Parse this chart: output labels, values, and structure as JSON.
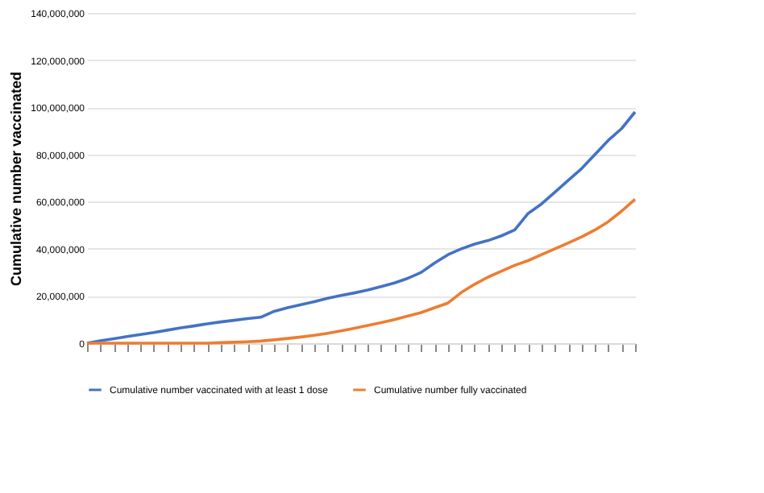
{
  "chart_data": {
    "type": "line",
    "ylabel": "Cumulative number vaccinated",
    "categories": [
      null,
      null,
      null,
      null,
      null,
      null,
      null,
      null,
      null,
      null,
      null,
      null,
      null,
      null,
      null,
      null,
      null,
      null,
      null,
      null,
      null,
      null,
      null,
      null,
      null,
      null,
      null,
      null,
      null,
      null,
      null,
      null,
      null,
      null,
      null,
      null,
      null,
      null,
      null,
      null,
      null,
      null
    ],
    "series": [
      {
        "name": "Cumulative number vaccinated with  at least 1 dose",
        "color": "#4472c4",
        "values": [
          0,
          1000000,
          1900000,
          2800000,
          3700000,
          4500000,
          5500000,
          6500000,
          7300000,
          8200000,
          9000000,
          9700000,
          10400000,
          11000000,
          13500000,
          15000000,
          16300000,
          17600000,
          19000000,
          20200000,
          21300000,
          22500000,
          24000000,
          25500000,
          27500000,
          30000000,
          34000000,
          37500000,
          40000000,
          42000000,
          43500000,
          45500000,
          48000000,
          55000000,
          59000000,
          64000000,
          69000000,
          74000000,
          80000000,
          86000000,
          91000000,
          98000000
        ]
      },
      {
        "name": "Cumulative number fully vaccinated",
        "color": "#ed7d31",
        "values": [
          0,
          0,
          0,
          0,
          0,
          0,
          0,
          0,
          0,
          0,
          200000,
          400000,
          600000,
          900000,
          1400000,
          2000000,
          2600000,
          3300000,
          4200000,
          5200000,
          6300000,
          7500000,
          8700000,
          10000000,
          11500000,
          13000000,
          15000000,
          17000000,
          21500000,
          25000000,
          28000000,
          30500000,
          33000000,
          35000000,
          37500000,
          40000000,
          42500000,
          45000000,
          48000000,
          51500000,
          56000000,
          61000000
        ]
      }
    ],
    "ylim": [
      0,
      140000000
    ],
    "yticks": [
      0,
      {
        "value": 20000000,
        "label": "20,000,000"
      },
      {
        "value": 40000000,
        "label": "40,000,000"
      },
      {
        "value": 60000000,
        "label": "60,000,000"
      },
      {
        "value": 80000000,
        "label": "80,000,000"
      },
      {
        "value": 100000000,
        "label": "100,000,000"
      },
      {
        "value": 120000000,
        "label": "120,000,000"
      },
      {
        "value": 140000000,
        "label": "140,000,000"
      }
    ],
    "grid": "y",
    "legend": "bottom",
    "tick_labels": "y",
    "marker": "none",
    "line_style": "solid"
  }
}
